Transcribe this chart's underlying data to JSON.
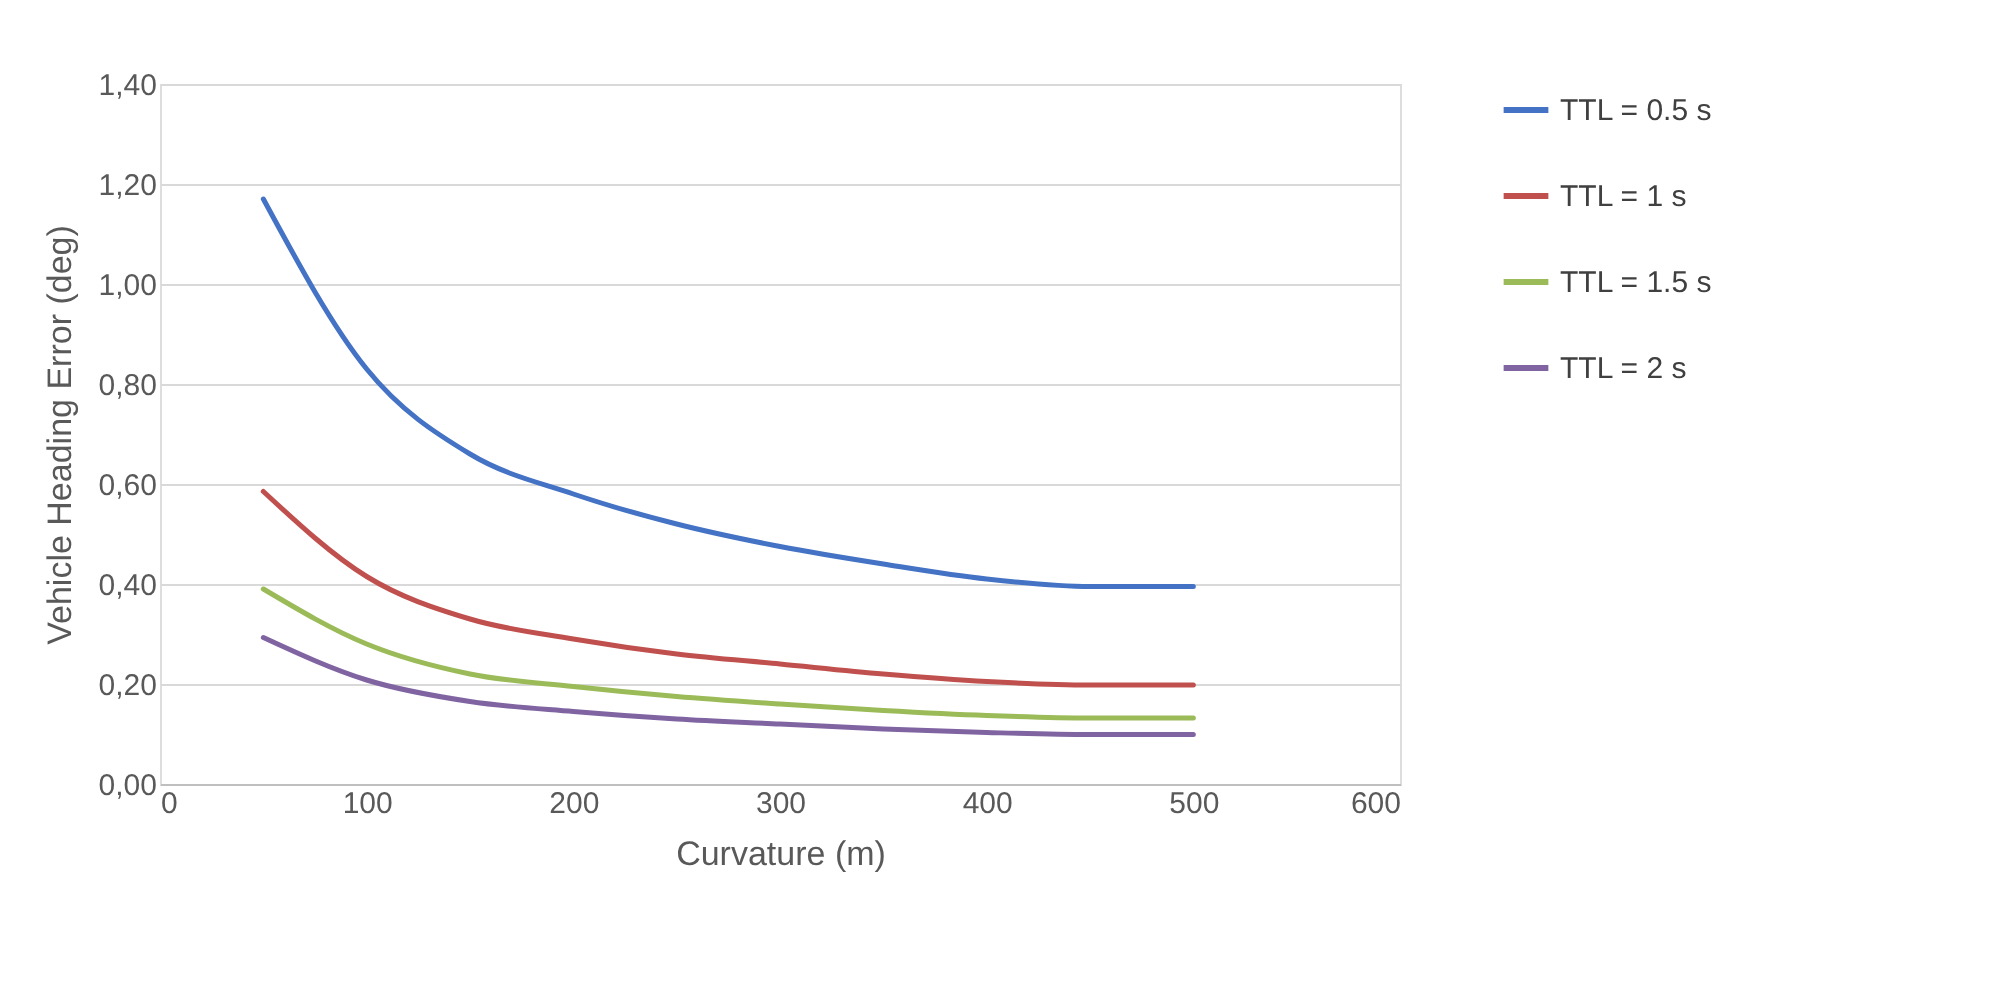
{
  "chart_data": {
    "type": "line",
    "xlabel": "Curvature (m)",
    "ylabel": "Vehicle Heading Error (deg)",
    "x": [
      50,
      100,
      150,
      200,
      250,
      300,
      350,
      400,
      450,
      500
    ],
    "series": [
      {
        "name": "TTL = 0.5 s",
        "color": "#4472c4",
        "values": [
          1.17,
          0.83,
          0.66,
          0.58,
          0.52,
          0.475,
          0.44,
          0.41,
          0.395,
          0.395
        ]
      },
      {
        "name": "TTL = 1 s",
        "color": "#c0504d",
        "values": [
          0.585,
          0.415,
          0.33,
          0.29,
          0.26,
          0.24,
          0.22,
          0.205,
          0.198,
          0.198
        ]
      },
      {
        "name": "TTL = 1.5 s",
        "color": "#9bbb59",
        "values": [
          0.39,
          0.28,
          0.22,
          0.195,
          0.175,
          0.16,
          0.147,
          0.137,
          0.132,
          0.132
        ]
      },
      {
        "name": "TTL = 2 s",
        "color": "#8064a2",
        "values": [
          0.293,
          0.208,
          0.165,
          0.145,
          0.13,
          0.12,
          0.11,
          0.103,
          0.099,
          0.099
        ]
      }
    ],
    "xlim": [
      0,
      600
    ],
    "xticks": [
      0,
      100,
      200,
      300,
      400,
      500,
      600
    ],
    "ylim": [
      0,
      1.4
    ],
    "yticks": [
      {
        "value": 0,
        "label": "0,00"
      },
      {
        "value": 0.2,
        "label": "0,20"
      },
      {
        "value": 0.4,
        "label": "0,40"
      },
      {
        "value": 0.6,
        "label": "0,60"
      },
      {
        "value": 0.8,
        "label": "0,80"
      },
      {
        "value": 1.0,
        "label": "1,00"
      },
      {
        "value": 1.2,
        "label": "1,20"
      },
      {
        "value": 1.4,
        "label": "1,40"
      }
    ],
    "grid": "y",
    "legend": "right",
    "marker": "none",
    "line_style": "solid"
  }
}
